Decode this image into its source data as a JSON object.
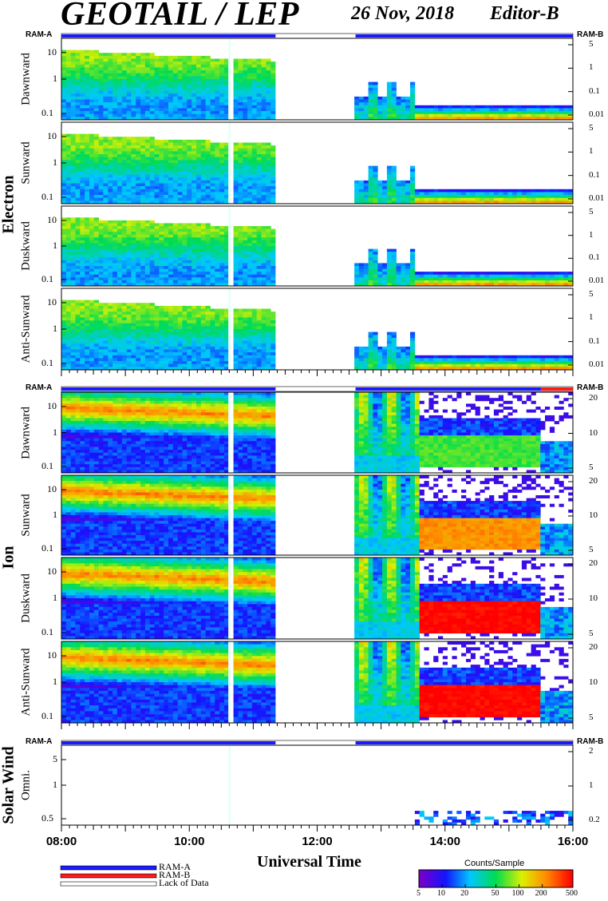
{
  "header": {
    "title": "GEOTAIL / LEP",
    "date": "26 Nov, 2018",
    "editor": "Editor-B"
  },
  "colors": {
    "ram_a": "#1a1aff",
    "ram_b": "#ff1a1a",
    "lack_of_data": "#ffffff"
  },
  "ram_labels": {
    "left": "RAM-A",
    "right": "RAM-B"
  },
  "groups": [
    {
      "name": "Electron"
    },
    {
      "name": "Ion"
    },
    {
      "name": "Solar Wind"
    }
  ],
  "chart_data": {
    "type": "heatmap",
    "x_ticks": [
      "08:00",
      "10:00",
      "12:00",
      "14:00",
      "16:00"
    ],
    "x_range_hours": [
      8,
      16
    ],
    "xlabel": "Universal Time",
    "ram_status_bars": [
      {
        "segments": [
          {
            "from": 8.0,
            "to": 11.35,
            "mode": "RAM-A"
          },
          {
            "from": 11.35,
            "to": 12.6,
            "mode": "Lack of Data"
          },
          {
            "from": 12.6,
            "to": 16.0,
            "mode": "RAM-A"
          }
        ]
      },
      {
        "segments": [
          {
            "from": 8.0,
            "to": 11.35,
            "mode": "RAM-A"
          },
          {
            "from": 11.35,
            "to": 12.6,
            "mode": "Lack of Data"
          },
          {
            "from": 12.6,
            "to": 15.5,
            "mode": "RAM-A"
          },
          {
            "from": 15.5,
            "to": 16.0,
            "mode": "RAM-B"
          }
        ]
      },
      {
        "segments": [
          {
            "from": 8.0,
            "to": 11.35,
            "mode": "RAM-A"
          },
          {
            "from": 11.35,
            "to": 12.6,
            "mode": "Lack of Data"
          },
          {
            "from": 12.6,
            "to": 16.0,
            "mode": "RAM-A"
          }
        ]
      }
    ],
    "panels": [
      {
        "group": "Electron",
        "label": "Dawnward",
        "left_ticks": [
          "10",
          "1",
          "0.1"
        ],
        "right_ticks": [
          "5",
          "1",
          "0.1",
          "0.01"
        ]
      },
      {
        "group": "Electron",
        "label": "Sunward",
        "left_ticks": [
          "10",
          "1",
          "0.1"
        ],
        "right_ticks": [
          "5",
          "1",
          "0.1",
          "0.01"
        ]
      },
      {
        "group": "Electron",
        "label": "Duskward",
        "left_ticks": [
          "10",
          "1",
          "0.1"
        ],
        "right_ticks": [
          "5",
          "1",
          "0.1",
          "0.01"
        ]
      },
      {
        "group": "Electron",
        "label": "Anti-Sunward",
        "left_ticks": [
          "10",
          "1",
          "0.1"
        ],
        "right_ticks": [
          "5",
          "1",
          "0.1",
          "0.01"
        ]
      },
      {
        "group": "Ion",
        "label": "Dawnward",
        "left_ticks": [
          "10",
          "1",
          "0.1"
        ],
        "right_ticks": [
          "20",
          "10",
          "5"
        ]
      },
      {
        "group": "Ion",
        "label": "Sunward",
        "left_ticks": [
          "10",
          "1",
          "0.1"
        ],
        "right_ticks": [
          "20",
          "10",
          "5"
        ]
      },
      {
        "group": "Ion",
        "label": "Duskward",
        "left_ticks": [
          "10",
          "1",
          "0.1"
        ],
        "right_ticks": [
          "20",
          "10",
          "5"
        ]
      },
      {
        "group": "Ion",
        "label": "Anti-Sunward",
        "left_ticks": [
          "10",
          "1",
          "0.1"
        ],
        "right_ticks": [
          "20",
          "10",
          "5"
        ]
      },
      {
        "group": "Solar Wind",
        "label": "Omni.",
        "left_ticks": [
          "5",
          "1",
          "0.5"
        ],
        "right_ticks": [
          "2",
          "1",
          "0.2"
        ]
      }
    ],
    "colorbar": {
      "title": "Counts/Sample",
      "ticks": [
        "5",
        "10",
        "20",
        "50",
        "100",
        "200",
        "500"
      ],
      "range": [
        5,
        500
      ],
      "scale": "log"
    },
    "legend": [
      {
        "label": "RAM-A",
        "color": "#1a1aff"
      },
      {
        "label": "RAM-B",
        "color": "#ff1a1a"
      },
      {
        "label": "Lack of Data",
        "color": "#ffffff"
      }
    ]
  }
}
